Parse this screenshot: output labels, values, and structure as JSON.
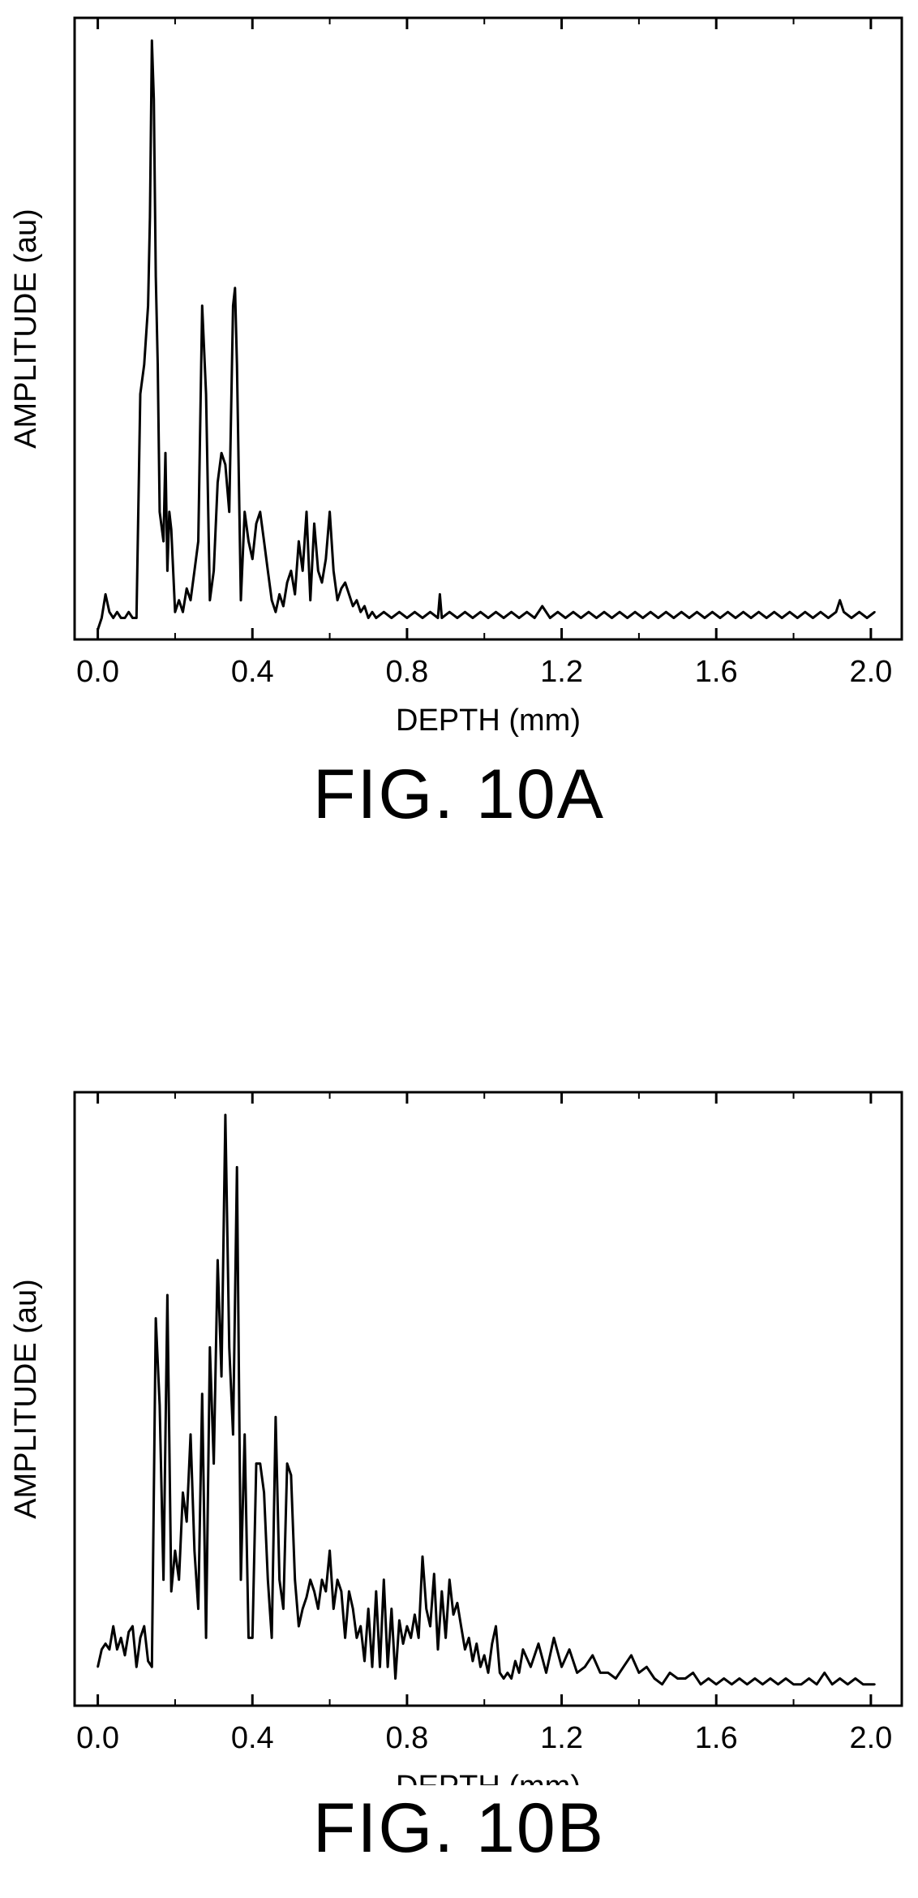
{
  "chart_data": [
    {
      "type": "line",
      "figure_label": "FIG. 10A",
      "title": "",
      "xlabel": "DEPTH (mm)",
      "ylabel": "AMPLITUDE (au)",
      "xlim": [
        -0.06,
        2.08
      ],
      "ylim": [
        0,
        1
      ],
      "xticks": [
        "0.0",
        "0.4",
        "0.8",
        "1.2",
        "1.6",
        "2.0"
      ],
      "xtick_values": [
        0.0,
        0.4,
        0.8,
        1.2,
        1.6,
        2.0
      ],
      "grid": false,
      "legend": "none",
      "color": "#000000",
      "series": [
        {
          "x": [
            0.0,
            0.01,
            0.02,
            0.03,
            0.04,
            0.05,
            0.06,
            0.07,
            0.08,
            0.09,
            0.1,
            0.11,
            0.12,
            0.13,
            0.135,
            0.14,
            0.145,
            0.15,
            0.155,
            0.16,
            0.17,
            0.175,
            0.18,
            0.185,
            0.19,
            0.2,
            0.21,
            0.22,
            0.23,
            0.24,
            0.25,
            0.26,
            0.27,
            0.28,
            0.29,
            0.3,
            0.31,
            0.32,
            0.33,
            0.34,
            0.35,
            0.355,
            0.36,
            0.37,
            0.38,
            0.39,
            0.4,
            0.41,
            0.42,
            0.43,
            0.44,
            0.45,
            0.46,
            0.47,
            0.48,
            0.49,
            0.5,
            0.51,
            0.52,
            0.53,
            0.54,
            0.55,
            0.56,
            0.57,
            0.58,
            0.59,
            0.6,
            0.61,
            0.62,
            0.63,
            0.64,
            0.65,
            0.66,
            0.67,
            0.68,
            0.69,
            0.7,
            0.71,
            0.72,
            0.74,
            0.76,
            0.78,
            0.8,
            0.82,
            0.84,
            0.86,
            0.88,
            0.885,
            0.89,
            0.91,
            0.93,
            0.95,
            0.97,
            0.99,
            1.01,
            1.03,
            1.05,
            1.07,
            1.09,
            1.11,
            1.13,
            1.15,
            1.17,
            1.19,
            1.21,
            1.23,
            1.25,
            1.27,
            1.29,
            1.31,
            1.33,
            1.35,
            1.37,
            1.39,
            1.41,
            1.43,
            1.45,
            1.47,
            1.49,
            1.51,
            1.53,
            1.55,
            1.57,
            1.59,
            1.61,
            1.63,
            1.65,
            1.67,
            1.69,
            1.71,
            1.73,
            1.75,
            1.77,
            1.79,
            1.81,
            1.83,
            1.85,
            1.87,
            1.89,
            1.91,
            1.92,
            1.93,
            1.95,
            1.97,
            1.99,
            2.01
          ],
          "y": [
            0.0,
            0.02,
            0.06,
            0.03,
            0.02,
            0.03,
            0.02,
            0.02,
            0.03,
            0.02,
            0.02,
            0.4,
            0.45,
            0.55,
            0.7,
            1.0,
            0.9,
            0.6,
            0.45,
            0.2,
            0.15,
            0.3,
            0.1,
            0.2,
            0.17,
            0.03,
            0.05,
            0.03,
            0.07,
            0.05,
            0.1,
            0.15,
            0.55,
            0.4,
            0.05,
            0.1,
            0.25,
            0.3,
            0.28,
            0.2,
            0.55,
            0.58,
            0.45,
            0.05,
            0.2,
            0.15,
            0.12,
            0.18,
            0.2,
            0.15,
            0.1,
            0.05,
            0.03,
            0.06,
            0.04,
            0.08,
            0.1,
            0.06,
            0.15,
            0.1,
            0.2,
            0.05,
            0.18,
            0.1,
            0.08,
            0.12,
            0.2,
            0.1,
            0.05,
            0.07,
            0.08,
            0.06,
            0.04,
            0.05,
            0.03,
            0.04,
            0.02,
            0.03,
            0.02,
            0.03,
            0.02,
            0.03,
            0.02,
            0.03,
            0.02,
            0.03,
            0.02,
            0.06,
            0.02,
            0.03,
            0.02,
            0.03,
            0.02,
            0.03,
            0.02,
            0.03,
            0.02,
            0.03,
            0.02,
            0.03,
            0.02,
            0.04,
            0.02,
            0.03,
            0.02,
            0.03,
            0.02,
            0.03,
            0.02,
            0.03,
            0.02,
            0.03,
            0.02,
            0.03,
            0.02,
            0.03,
            0.02,
            0.03,
            0.02,
            0.03,
            0.02,
            0.03,
            0.02,
            0.03,
            0.02,
            0.03,
            0.02,
            0.03,
            0.02,
            0.03,
            0.02,
            0.03,
            0.02,
            0.03,
            0.02,
            0.03,
            0.02,
            0.03,
            0.02,
            0.03,
            0.05,
            0.03,
            0.02,
            0.03,
            0.02,
            0.03
          ]
        }
      ]
    },
    {
      "type": "line",
      "figure_label": "FIG. 10B",
      "title": "",
      "xlabel": "DEPTH (mm)",
      "ylabel": "AMPLITUDE (au)",
      "xlim": [
        -0.06,
        2.08
      ],
      "ylim": [
        0,
        1
      ],
      "xticks": [
        "0.0",
        "0.4",
        "0.8",
        "1.2",
        "1.6",
        "2.0"
      ],
      "xtick_values": [
        0.0,
        0.4,
        0.8,
        1.2,
        1.6,
        2.0
      ],
      "grid": false,
      "legend": "none",
      "color": "#000000",
      "series": [
        {
          "x": [
            0.0,
            0.01,
            0.02,
            0.03,
            0.04,
            0.05,
            0.06,
            0.07,
            0.08,
            0.09,
            0.1,
            0.11,
            0.12,
            0.13,
            0.14,
            0.15,
            0.16,
            0.17,
            0.18,
            0.19,
            0.2,
            0.21,
            0.22,
            0.23,
            0.24,
            0.25,
            0.26,
            0.27,
            0.28,
            0.29,
            0.3,
            0.31,
            0.32,
            0.33,
            0.34,
            0.35,
            0.36,
            0.37,
            0.38,
            0.39,
            0.4,
            0.41,
            0.42,
            0.43,
            0.44,
            0.45,
            0.46,
            0.47,
            0.48,
            0.49,
            0.5,
            0.51,
            0.52,
            0.53,
            0.54,
            0.55,
            0.56,
            0.57,
            0.58,
            0.59,
            0.6,
            0.61,
            0.62,
            0.63,
            0.64,
            0.65,
            0.66,
            0.67,
            0.68,
            0.69,
            0.7,
            0.71,
            0.72,
            0.73,
            0.74,
            0.75,
            0.76,
            0.77,
            0.78,
            0.79,
            0.8,
            0.81,
            0.82,
            0.83,
            0.84,
            0.85,
            0.86,
            0.87,
            0.88,
            0.89,
            0.9,
            0.91,
            0.92,
            0.93,
            0.94,
            0.95,
            0.96,
            0.97,
            0.98,
            0.99,
            1.0,
            1.01,
            1.02,
            1.03,
            1.04,
            1.05,
            1.06,
            1.07,
            1.08,
            1.09,
            1.1,
            1.12,
            1.14,
            1.16,
            1.18,
            1.2,
            1.22,
            1.24,
            1.26,
            1.28,
            1.3,
            1.32,
            1.34,
            1.36,
            1.38,
            1.4,
            1.42,
            1.44,
            1.46,
            1.48,
            1.5,
            1.52,
            1.54,
            1.56,
            1.58,
            1.6,
            1.62,
            1.64,
            1.66,
            1.68,
            1.7,
            1.72,
            1.74,
            1.76,
            1.78,
            1.8,
            1.82,
            1.84,
            1.86,
            1.88,
            1.9,
            1.92,
            1.94,
            1.96,
            1.98,
            2.01
          ],
          "y": [
            0.05,
            0.08,
            0.09,
            0.08,
            0.12,
            0.08,
            0.1,
            0.07,
            0.11,
            0.12,
            0.05,
            0.1,
            0.12,
            0.06,
            0.05,
            0.65,
            0.5,
            0.2,
            0.69,
            0.18,
            0.25,
            0.2,
            0.35,
            0.3,
            0.45,
            0.25,
            0.15,
            0.52,
            0.1,
            0.6,
            0.4,
            0.75,
            0.55,
            1.0,
            0.6,
            0.45,
            0.91,
            0.2,
            0.45,
            0.1,
            0.1,
            0.4,
            0.4,
            0.35,
            0.2,
            0.1,
            0.48,
            0.2,
            0.15,
            0.4,
            0.38,
            0.2,
            0.12,
            0.15,
            0.17,
            0.2,
            0.18,
            0.15,
            0.2,
            0.18,
            0.25,
            0.15,
            0.2,
            0.18,
            0.1,
            0.18,
            0.15,
            0.1,
            0.12,
            0.06,
            0.15,
            0.05,
            0.18,
            0.05,
            0.2,
            0.05,
            0.15,
            0.03,
            0.13,
            0.09,
            0.12,
            0.1,
            0.14,
            0.1,
            0.24,
            0.15,
            0.12,
            0.21,
            0.08,
            0.18,
            0.1,
            0.2,
            0.14,
            0.16,
            0.12,
            0.08,
            0.1,
            0.06,
            0.09,
            0.05,
            0.07,
            0.04,
            0.09,
            0.12,
            0.04,
            0.03,
            0.04,
            0.03,
            0.06,
            0.04,
            0.08,
            0.05,
            0.09,
            0.04,
            0.1,
            0.05,
            0.08,
            0.04,
            0.05,
            0.07,
            0.04,
            0.04,
            0.03,
            0.05,
            0.07,
            0.04,
            0.05,
            0.03,
            0.02,
            0.04,
            0.03,
            0.03,
            0.04,
            0.02,
            0.03,
            0.02,
            0.03,
            0.02,
            0.03,
            0.02,
            0.03,
            0.02,
            0.03,
            0.02,
            0.03,
            0.02,
            0.02,
            0.03,
            0.02,
            0.04,
            0.02,
            0.03,
            0.02,
            0.03,
            0.02,
            0.02
          ]
        }
      ]
    }
  ]
}
